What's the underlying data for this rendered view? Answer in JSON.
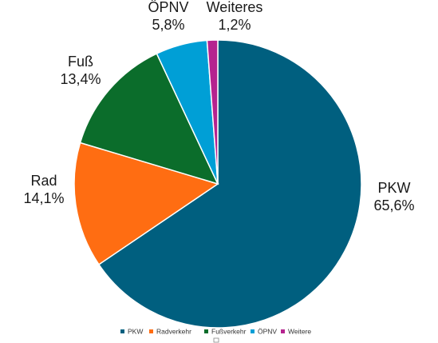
{
  "chart_data": {
    "type": "pie",
    "title": "",
    "slices": [
      {
        "legend": "PKW",
        "label": "PKW",
        "value_text": "65,6%",
        "value": 65.6,
        "color": "#005f7f"
      },
      {
        "legend": "Radverkehr",
        "label": "Rad",
        "value_text": "14,1%",
        "value": 14.1,
        "color": "#ff6d12"
      },
      {
        "legend": "Fußverkehr",
        "label": "Fuß",
        "value_text": "13,4%",
        "value": 13.4,
        "color": "#0b6d2b"
      },
      {
        "legend": "ÖPNV",
        "label": "ÖPNV",
        "value_text": "5,8%",
        "value": 5.8,
        "color": "#009fd6"
      },
      {
        "legend": "Weiteres",
        "label": "Weiteres",
        "value_text": "1,2%",
        "value": 1.2,
        "color": "#b5238f"
      }
    ],
    "legend_entries": [
      "PKW",
      "Radverkehr",
      "Fußverkehr",
      "ÖPNV",
      "Weitere"
    ],
    "legend_position": "bottom",
    "start_angle": "top",
    "direction": "clockwise"
  }
}
